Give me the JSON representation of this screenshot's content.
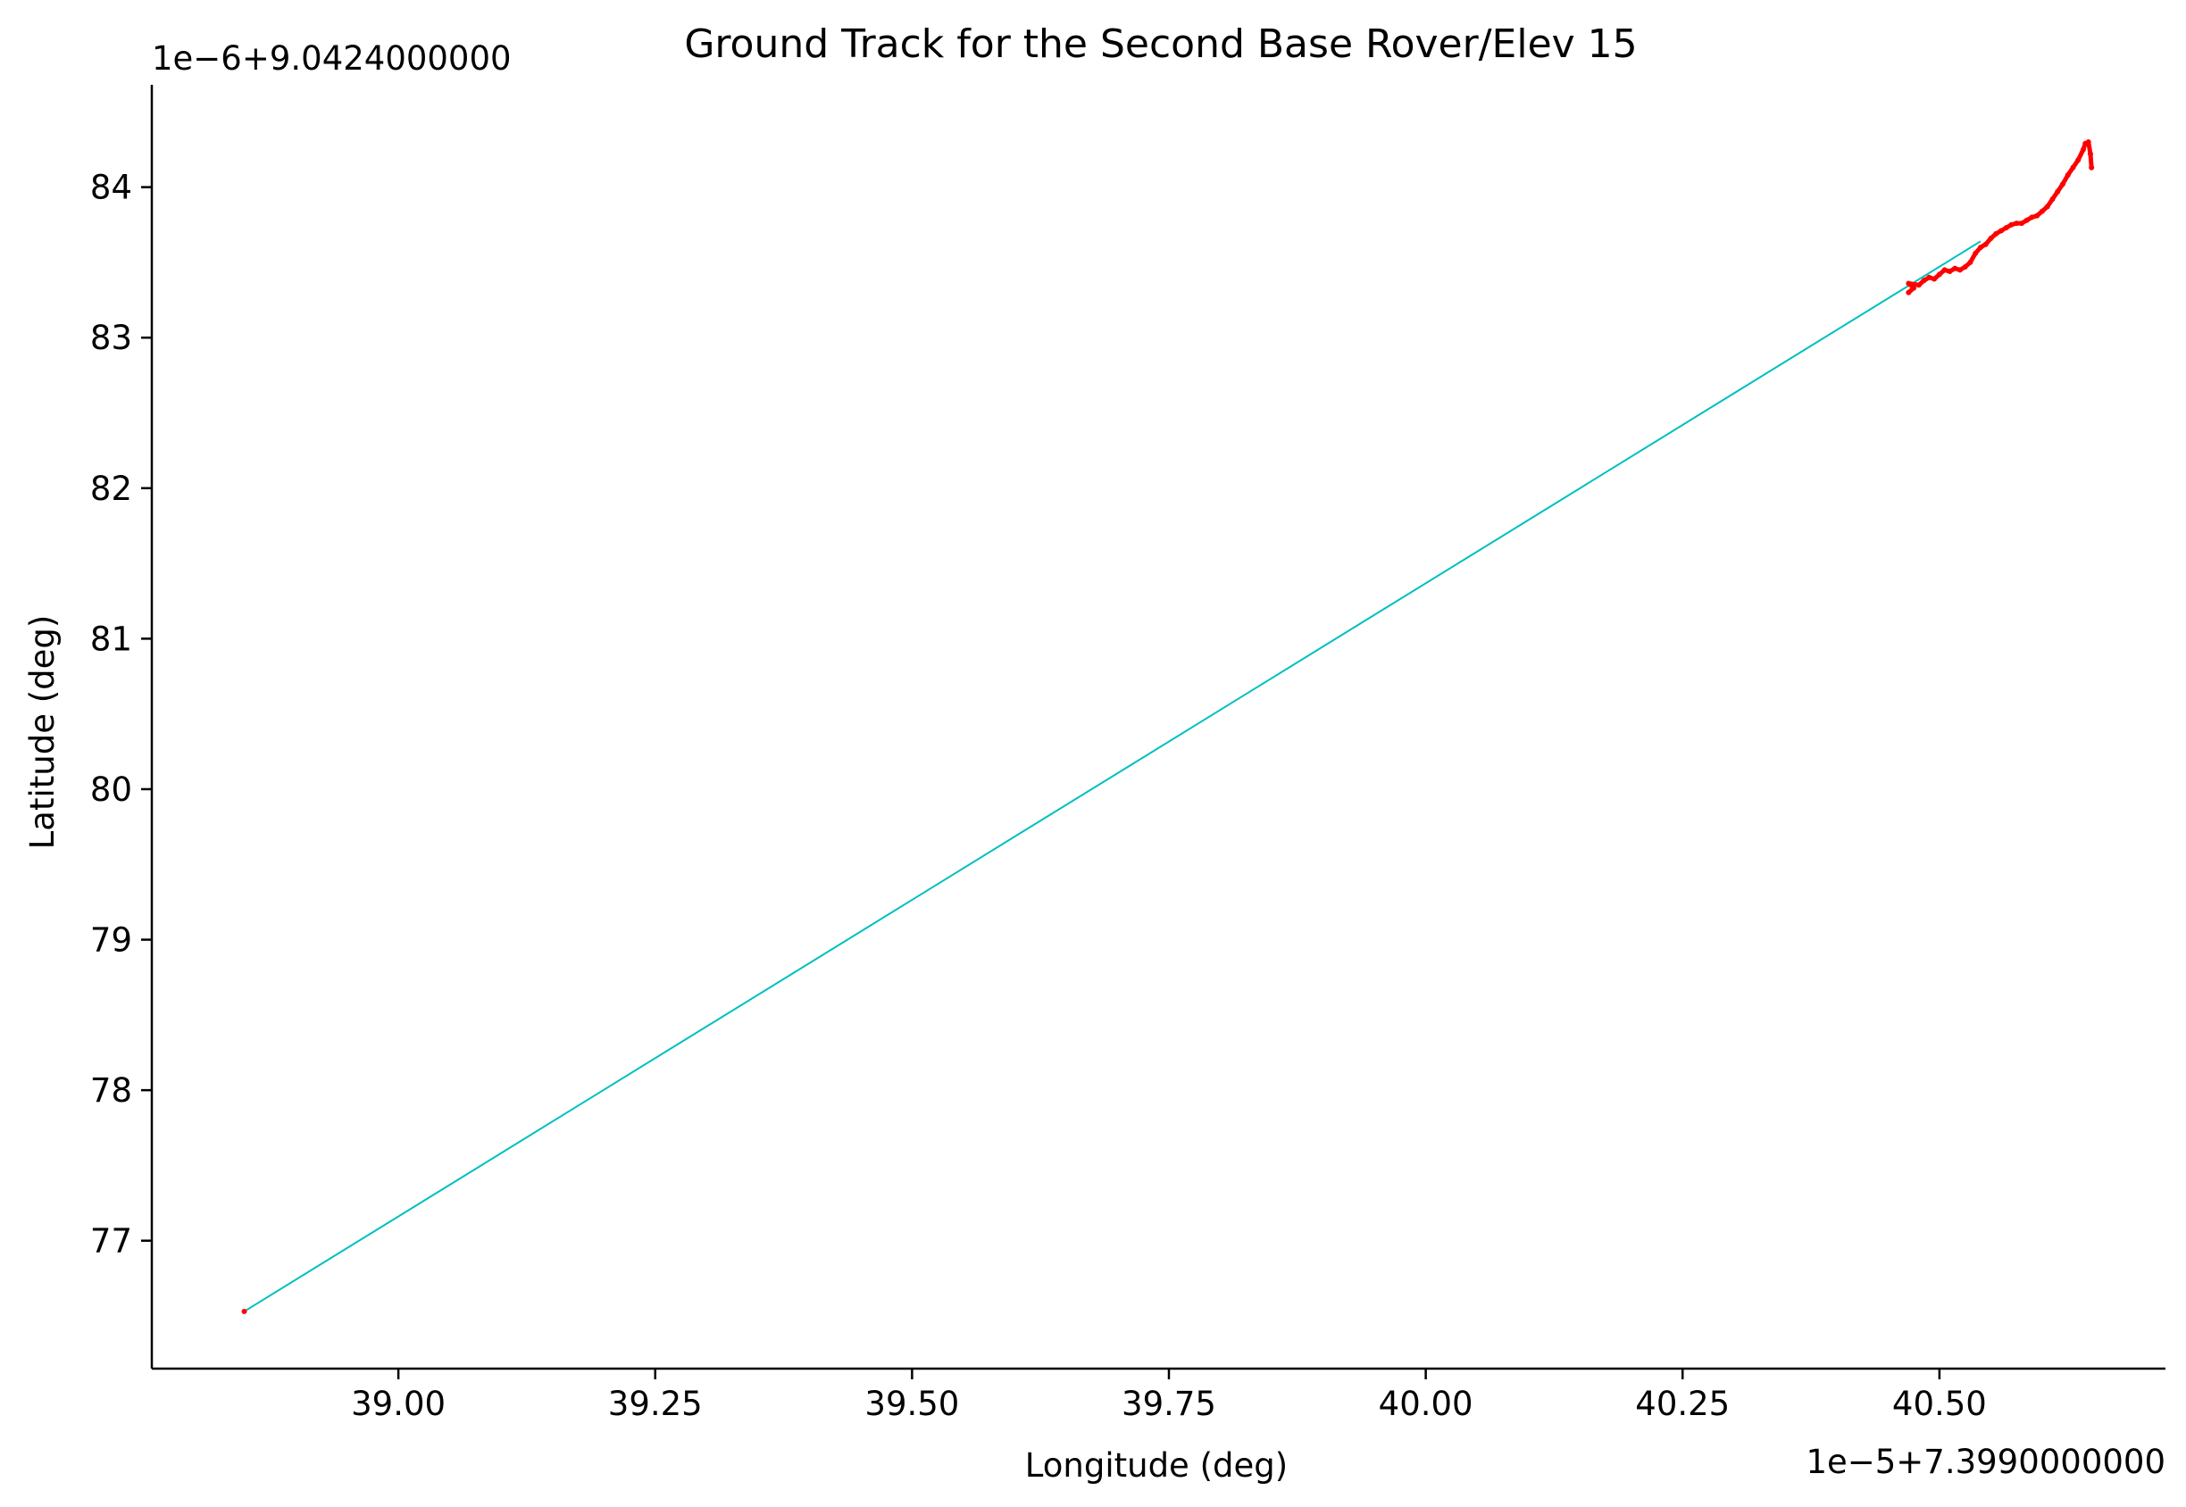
{
  "chart_data": {
    "type": "scatter",
    "title": "Ground Track for the Second Base Rover/Elev 15",
    "xlabel": "Longitude (deg)",
    "ylabel": "Latitude (deg)",
    "x_offset_text": "1e−5+7.3990000000",
    "y_offset_text": "1e−6+9.0424000000",
    "xlim": [
      38.76,
      40.72
    ],
    "ylim": [
      76.15,
      84.68
    ],
    "x_ticks": [
      39.0,
      39.25,
      39.5,
      39.75,
      40.0,
      40.25,
      40.5
    ],
    "x_tick_labels": [
      "39.00",
      "39.25",
      "39.50",
      "39.75",
      "40.00",
      "40.25",
      "40.50"
    ],
    "y_ticks": [
      77,
      78,
      79,
      80,
      81,
      82,
      83,
      84
    ],
    "y_tick_labels": [
      "77",
      "78",
      "79",
      "80",
      "81",
      "82",
      "83",
      "84"
    ],
    "grid": false,
    "series": [
      {
        "kind": "line",
        "color": "#00bfbf",
        "points": [
          [
            38.85,
            76.53
          ],
          [
            40.54,
            83.64
          ]
        ]
      },
      {
        "kind": "points",
        "color": "#ff0000",
        "points": [
          [
            38.85,
            76.53
          ],
          [
            40.47,
            83.3
          ],
          [
            40.475,
            83.33
          ],
          [
            40.47,
            83.36
          ],
          [
            40.48,
            83.35
          ],
          [
            40.485,
            83.38
          ],
          [
            40.49,
            83.4
          ],
          [
            40.495,
            83.39
          ],
          [
            40.5,
            83.42
          ],
          [
            40.505,
            83.45
          ],
          [
            40.51,
            83.44
          ],
          [
            40.515,
            83.46
          ],
          [
            40.52,
            83.45
          ],
          [
            40.525,
            83.47
          ],
          [
            40.53,
            83.5
          ],
          [
            40.535,
            83.56
          ],
          [
            40.54,
            83.6
          ],
          [
            40.545,
            83.62
          ],
          [
            40.55,
            83.66
          ],
          [
            40.555,
            83.69
          ],
          [
            40.56,
            83.71
          ],
          [
            40.565,
            83.73
          ],
          [
            40.57,
            83.75
          ],
          [
            40.575,
            83.76
          ],
          [
            40.58,
            83.76
          ],
          [
            40.585,
            83.78
          ],
          [
            40.59,
            83.8
          ],
          [
            40.595,
            83.81
          ],
          [
            40.6,
            83.84
          ],
          [
            40.605,
            83.87
          ],
          [
            40.61,
            83.92
          ],
          [
            40.615,
            83.97
          ],
          [
            40.62,
            84.02
          ],
          [
            40.625,
            84.08
          ],
          [
            40.63,
            84.13
          ],
          [
            40.635,
            84.18
          ],
          [
            40.64,
            84.25
          ],
          [
            40.642,
            84.29
          ],
          [
            40.645,
            84.3
          ],
          [
            40.647,
            84.22
          ],
          [
            40.648,
            84.13
          ]
        ]
      }
    ]
  }
}
